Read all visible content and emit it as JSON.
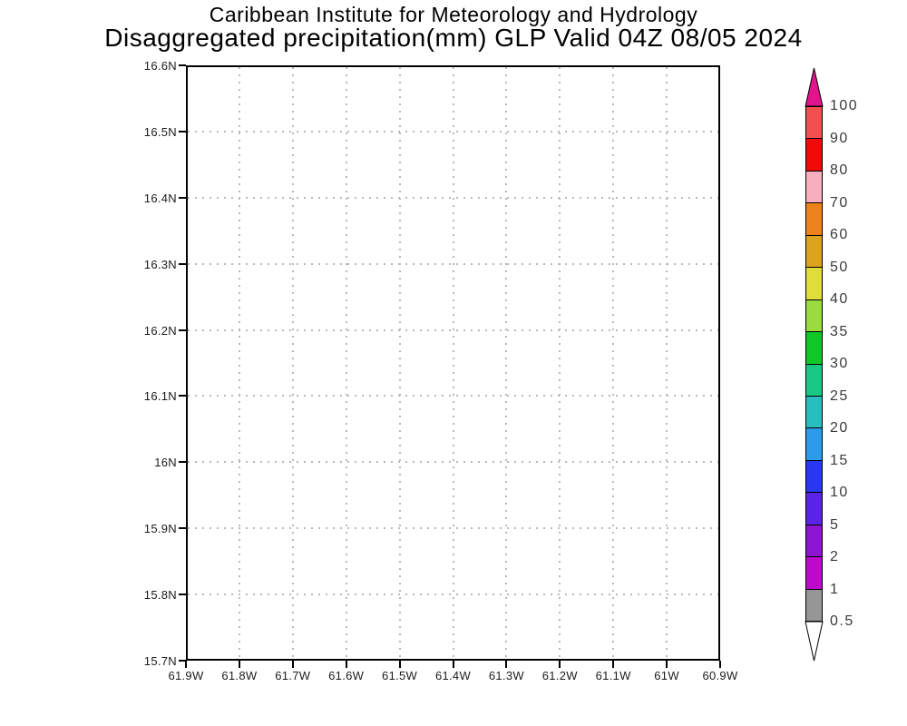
{
  "title": {
    "line1": "Caribbean Institute for Meteorology and Hydrology",
    "line2": "Disaggregated precipitation(mm) GLP Valid 04Z 08/05 2024"
  },
  "chart_data": {
    "type": "geo-contour-map",
    "title": "Disaggregated precipitation(mm) GLP Valid 04Z 08/05 2024",
    "institution": "Caribbean Institute for Meteorology and Hydrology",
    "region": "GLP",
    "valid_time": "04Z 08/05 2024",
    "units": "mm",
    "plotted_data": "none (empty field, no precipitation shading or contours drawn)",
    "grid": "dotted",
    "grid_color": "#b9b9b9",
    "axis_color": "#000000",
    "background_color": "#ffffff",
    "x_axis": {
      "labels": [
        "61.9W",
        "61.8W",
        "61.7W",
        "61.6W",
        "61.5W",
        "61.4W",
        "61.3W",
        "61.2W",
        "61.1W",
        "61W",
        "60.9W"
      ],
      "range_deg_west": [
        61.9,
        60.9
      ]
    },
    "y_axis": {
      "labels": [
        "16.6N",
        "16.5N",
        "16.4N",
        "16.3N",
        "16.2N",
        "16.1N",
        "16N",
        "15.9N",
        "15.8N",
        "15.7N"
      ],
      "range_deg_north": [
        15.7,
        16.6
      ]
    },
    "colorbar": {
      "position": "right",
      "over_arrow_color": "#e0148c",
      "under_arrow_color": "#ffffff",
      "bands_top_to_bottom": [
        {
          "top_label": "100",
          "color": "#f25050"
        },
        {
          "top_label": "90",
          "color": "#f00a0a"
        },
        {
          "top_label": "80",
          "color": "#f7aebe"
        },
        {
          "top_label": "70",
          "color": "#ee8419"
        },
        {
          "top_label": "60",
          "color": "#dca41e"
        },
        {
          "top_label": "50",
          "color": "#e0dc3c"
        },
        {
          "top_label": "40",
          "color": "#9adb3e"
        },
        {
          "top_label": "35",
          "color": "#0fc828"
        },
        {
          "top_label": "30",
          "color": "#19c882"
        },
        {
          "top_label": "25",
          "color": "#28bebe"
        },
        {
          "top_label": "20",
          "color": "#2d9beb"
        },
        {
          "top_label": "15",
          "color": "#2837f0"
        },
        {
          "top_label": "10",
          "color": "#5a23e6"
        },
        {
          "top_label": "5",
          "color": "#8c14d2"
        },
        {
          "top_label": "2",
          "color": "#be0acd"
        },
        {
          "top_label": "1",
          "color": "#969696"
        }
      ],
      "bottom_label": "0.5"
    }
  }
}
